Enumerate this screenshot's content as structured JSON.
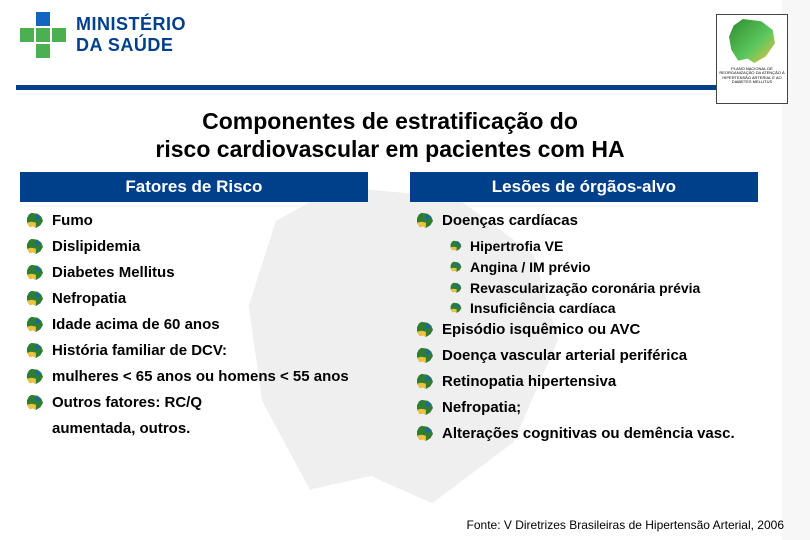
{
  "colors": {
    "brand_blue": "#003f8a",
    "brand_green": "#4caf50",
    "bullet_green": "#2e7d32",
    "bullet_yellow": "#f0c040",
    "bullet_blue": "#1565c0",
    "text": "#000000",
    "bg": "#ffffff"
  },
  "header": {
    "logo_top": "MINISTÉRIO",
    "logo_bottom": "DA SAÚDE",
    "map_caption": "PLANO NACIONAL DE REORGANIZAÇÃO DA ATENÇÃO À HIPERTENSÃO ARTERIAL E AO DIABETES MELLITUS"
  },
  "title": {
    "line1": "Componentes de estratificação do",
    "line2": "risco cardiovascular em pacientes com HA"
  },
  "left": {
    "header": "Fatores de Risco",
    "items": [
      "Fumo",
      "Dislipidemia",
      "Diabetes Mellitus",
      "Nefropatia",
      "Idade acima de 60 anos",
      "História familiar de DCV:",
      "mulheres < 65 anos ou homens < 55 anos",
      "Outros fatores: RC/Q",
      "aumentada, outros."
    ]
  },
  "right": {
    "header": "Lesões de órgãos-alvo",
    "items": [
      {
        "text": "Doenças cardíacas",
        "sub": false
      },
      {
        "text": "Hipertrofia VE",
        "sub": true
      },
      {
        "text": "Angina / IM prévio",
        "sub": true
      },
      {
        "text": "Revascularização coronária prévia",
        "sub": true
      },
      {
        "text": "Insuficiência cardíaca",
        "sub": true
      },
      {
        "text": "Episódio isquêmico ou AVC",
        "sub": false
      },
      {
        "text": "Doença vascular arterial periférica",
        "sub": false
      },
      {
        "text": "Retinopatia hipertensiva",
        "sub": false
      },
      {
        "text": "Nefropatia;",
        "sub": false
      },
      {
        "text": "Alterações cognitivas ou demência vasc.",
        "sub": false
      }
    ]
  },
  "source": "Fonte: V Diretrizes Brasileiras de Hipertensão Arterial, 2006"
}
